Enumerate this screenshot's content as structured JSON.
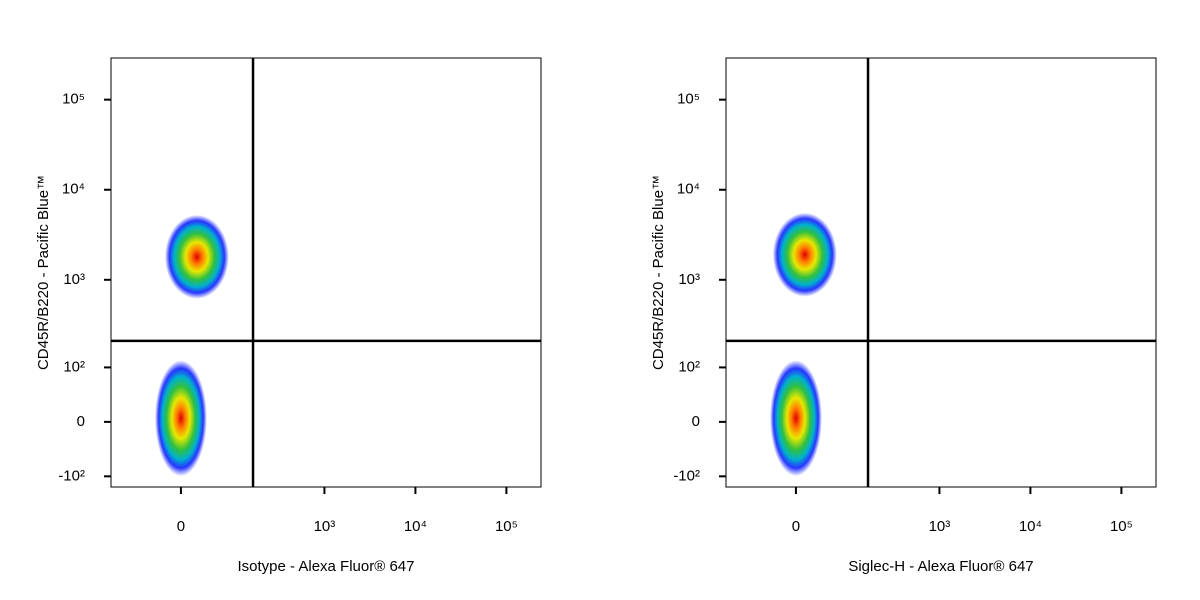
{
  "chart_data": [
    {
      "type": "scatter",
      "xscale": "biexponential",
      "yscale": "biexponential",
      "xlabel": "Isotype - Alexa Fluor® 647",
      "ylabel": "CD45R/B220 - Pacific Blue™",
      "x": [
        0,
        22
      ],
      "values": [
        5,
        1800
      ],
      "xgate": 160,
      "ygate": 207,
      "xlim": [
        -151,
        240000
      ],
      "ylim": [
        -135,
        290000
      ],
      "xticks": [
        0,
        {
          "value": 1000,
          "label": "10³"
        },
        {
          "value": 10000,
          "label": "10⁴"
        },
        {
          "value": 100000,
          "label": "10⁵"
        }
      ],
      "yticks": [
        {
          "value": -100,
          "label": "-10²"
        },
        0,
        {
          "value": 100,
          "label": "10²"
        },
        {
          "value": 1000,
          "label": "10³"
        },
        {
          "value": 10000,
          "label": "10⁴"
        },
        {
          "value": 100000,
          "label": "10⁵"
        }
      ]
    },
    {
      "type": "scatter",
      "xscale": "biexponential",
      "yscale": "biexponential",
      "xlabel": "Siglec-H - Alexa Fluor® 647",
      "ylabel": "CD45R/B220 - Pacific Blue™",
      "x": [
        0,
        12
      ],
      "values": [
        5,
        1900
      ],
      "xgate": 160,
      "ygate": 207,
      "xlim": [
        -151,
        240000
      ],
      "ylim": [
        -135,
        290000
      ],
      "xticks": [
        0,
        {
          "value": 1000,
          "label": "10³"
        },
        {
          "value": 10000,
          "label": "10⁴"
        },
        {
          "value": 100000,
          "label": "10⁵"
        }
      ],
      "yticks": [
        {
          "value": -100,
          "label": "-10²"
        },
        0,
        {
          "value": 100,
          "label": "10²"
        },
        {
          "value": 1000,
          "label": "10³"
        },
        {
          "value": 10000,
          "label": "10⁴"
        },
        {
          "value": 100000,
          "label": "10⁵"
        }
      ]
    }
  ]
}
